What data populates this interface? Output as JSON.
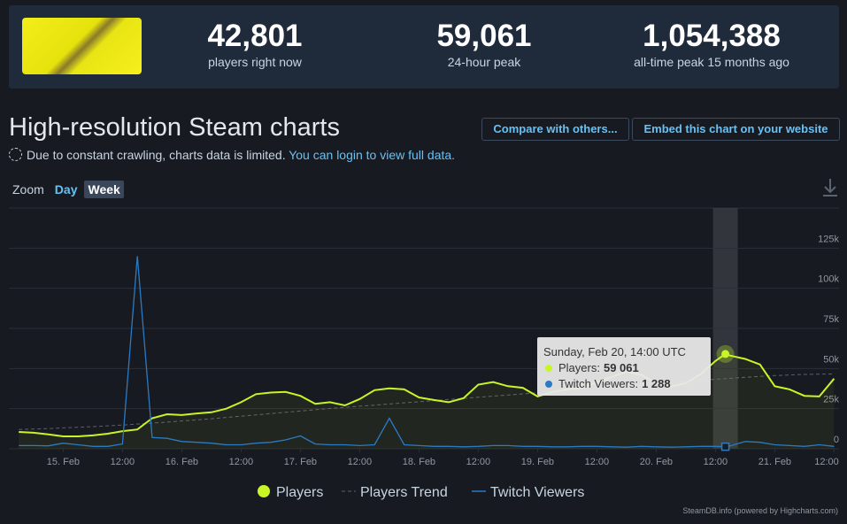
{
  "header": {
    "stats": [
      {
        "value": "42,801",
        "label": "players right now"
      },
      {
        "value": "59,061",
        "label": "24-hour peak"
      },
      {
        "value": "1,054,388",
        "label": "all-time peak 15 months ago"
      }
    ]
  },
  "title": "High-resolution Steam charts",
  "buttons": [
    "Compare with others...",
    "Embed this chart on your website"
  ],
  "notice": {
    "text": "Due to constant crawling, charts data is limited.",
    "link": "You can login to view full data."
  },
  "zoom": {
    "label": "Zoom",
    "options": [
      "Day",
      "Week"
    ]
  },
  "chart_data": {
    "type": "line",
    "x": [
      "Feb 14 15:00",
      "Feb 14 18:00",
      "Feb 14 21:00",
      "Feb 15 00:00",
      "Feb 15 03:00",
      "Feb 15 06:00",
      "Feb 15 09:00",
      "Feb 15 12:00",
      "Feb 15 15:00",
      "Feb 15 18:00",
      "Feb 15 21:00",
      "Feb 16 00:00",
      "Feb 16 03:00",
      "Feb 16 06:00",
      "Feb 16 09:00",
      "Feb 16 12:00",
      "Feb 16 15:00",
      "Feb 16 18:00",
      "Feb 16 21:00",
      "Feb 17 00:00",
      "Feb 17 03:00",
      "Feb 17 06:00",
      "Feb 17 09:00",
      "Feb 17 12:00",
      "Feb 17 15:00",
      "Feb 17 18:00",
      "Feb 17 21:00",
      "Feb 18 00:00",
      "Feb 18 03:00",
      "Feb 18 06:00",
      "Feb 18 09:00",
      "Feb 18 12:00",
      "Feb 18 15:00",
      "Feb 18 18:00",
      "Feb 18 21:00",
      "Feb 19 00:00",
      "Feb 19 03:00",
      "Feb 19 06:00",
      "Feb 19 09:00",
      "Feb 19 12:00",
      "Feb 19 15:00",
      "Feb 19 18:00",
      "Feb 19 21:00",
      "Feb 20 00:00",
      "Feb 20 03:00",
      "Feb 20 06:00",
      "Feb 20 09:00",
      "Feb 20 12:00",
      "Feb 20 14:00",
      "Feb 20 15:00",
      "Feb 20 18:00",
      "Feb 20 21:00",
      "Feb 21 00:00",
      "Feb 21 03:00",
      "Feb 21 06:00",
      "Feb 21 09:00",
      "Feb 21 12:00"
    ],
    "series": [
      {
        "name": "Players",
        "color": "#c8f526",
        "area": true,
        "values": [
          10500,
          10000,
          9000,
          7700,
          7700,
          8300,
          9400,
          11000,
          12000,
          19000,
          21500,
          21000,
          22000,
          22700,
          25000,
          29000,
          34000,
          35000,
          35400,
          33000,
          28000,
          29000,
          27000,
          31000,
          36500,
          37600,
          37000,
          32000,
          30400,
          29000,
          31500,
          40000,
          41500,
          39000,
          38000,
          32600,
          35400,
          37000,
          38000,
          41500,
          44800,
          48000,
          46000,
          41000,
          38700,
          41000,
          46500,
          54700,
          59061,
          58000,
          56000,
          52500,
          39000,
          37000,
          33000,
          32600,
          43700
        ]
      },
      {
        "name": "Players Trend",
        "color": "#5b6068",
        "dashed": true,
        "values": [
          12000,
          12300,
          12600,
          13000,
          13400,
          13800,
          14300,
          14800,
          15400,
          16000,
          16600,
          17300,
          18000,
          18700,
          19500,
          20300,
          21100,
          21900,
          22700,
          23500,
          24300,
          25100,
          25800,
          26500,
          27200,
          27900,
          28600,
          29300,
          30000,
          30700,
          31400,
          32100,
          32800,
          33500,
          34200,
          34900,
          35600,
          36300,
          37000,
          37700,
          38400,
          39100,
          39800,
          40500,
          41200,
          41900,
          42600,
          43300,
          43700,
          43900,
          44500,
          45100,
          45600,
          46000,
          46300,
          46500,
          46600
        ]
      },
      {
        "name": "Twitch Viewers",
        "color": "#2a7bc4",
        "values": [
          2000,
          2000,
          1800,
          3500,
          2500,
          1500,
          1500,
          3000,
          120000,
          7000,
          6500,
          4500,
          4000,
          3500,
          2500,
          2500,
          3500,
          4000,
          5500,
          8000,
          3000,
          2500,
          2500,
          2000,
          2500,
          19000,
          2500,
          2000,
          1500,
          1500,
          1200,
          1500,
          2000,
          2000,
          1500,
          1500,
          1200,
          1200,
          1500,
          1500,
          1200,
          1000,
          1500,
          1200,
          1000,
          1200,
          1500,
          1500,
          1288,
          1800,
          4500,
          4000,
          2500,
          2000,
          1500,
          2500,
          1500
        ]
      }
    ],
    "xlim": [
      "Feb 14 13:00",
      "Feb 21 13:00"
    ],
    "xticks": [
      {
        "value": "Feb 15 00:00",
        "label": "15. Feb"
      },
      {
        "value": "Feb 15 12:00",
        "label": "12:00"
      },
      {
        "value": "Feb 16 00:00",
        "label": "16. Feb"
      },
      {
        "value": "Feb 16 12:00",
        "label": "12:00"
      },
      {
        "value": "Feb 17 00:00",
        "label": "17. Feb"
      },
      {
        "value": "Feb 17 12:00",
        "label": "12:00"
      },
      {
        "value": "Feb 18 00:00",
        "label": "18. Feb"
      },
      {
        "value": "Feb 18 12:00",
        "label": "12:00"
      },
      {
        "value": "Feb 19 00:00",
        "label": "19. Feb"
      },
      {
        "value": "Feb 19 12:00",
        "label": "12:00"
      },
      {
        "value": "Feb 20 00:00",
        "label": "20. Feb"
      },
      {
        "value": "Feb 20 12:00",
        "label": "12:00"
      },
      {
        "value": "Feb 21 00:00",
        "label": "21. Feb"
      },
      {
        "value": "Feb 21 12:00",
        "label": "12:00"
      }
    ],
    "ylim": [
      0,
      150000
    ],
    "yticks": [
      0,
      {
        "value": 25000,
        "label": "25k"
      },
      {
        "value": 50000,
        "label": "50k"
      },
      {
        "value": 75000,
        "label": "75k"
      },
      {
        "value": 100000,
        "label": "100k"
      },
      {
        "value": 125000,
        "label": "125k"
      }
    ],
    "grid": true,
    "legend": "bottom",
    "highlight": "Feb 20 14:00",
    "tooltip": {
      "title": "Sunday, Feb 20, 14:00 UTC",
      "lines": [
        {
          "label": "Players:",
          "value": "59 061"
        },
        {
          "label": "Twitch Viewers:",
          "value": "1 288"
        }
      ]
    },
    "credits": "SteamDB.info (powered by Highcharts.com)"
  }
}
